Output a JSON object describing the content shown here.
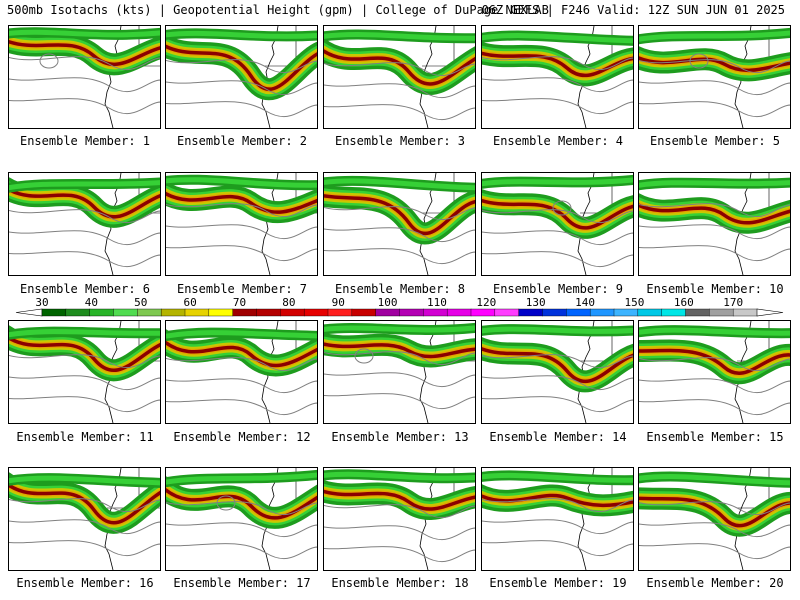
{
  "title": {
    "left": "500mb Isotachs (kts) | Geopotential Height (gpm) | College of DuPage NEXLAB",
    "right": "06Z GEFS | F246 Valid: 12Z SUN JUN 01 2025"
  },
  "panels": [
    {
      "label": "Ensemble Member: 1"
    },
    {
      "label": "Ensemble Member: 2"
    },
    {
      "label": "Ensemble Member: 3"
    },
    {
      "label": "Ensemble Member: 4"
    },
    {
      "label": "Ensemble Member: 5"
    },
    {
      "label": "Ensemble Member: 6"
    },
    {
      "label": "Ensemble Member: 7"
    },
    {
      "label": "Ensemble Member: 8"
    },
    {
      "label": "Ensemble Member: 9"
    },
    {
      "label": "Ensemble Member: 10"
    },
    {
      "label": "Ensemble Member: 11"
    },
    {
      "label": "Ensemble Member: 12"
    },
    {
      "label": "Ensemble Member: 13"
    },
    {
      "label": "Ensemble Member: 14"
    },
    {
      "label": "Ensemble Member: 15"
    },
    {
      "label": "Ensemble Member: 16"
    },
    {
      "label": "Ensemble Member: 17"
    },
    {
      "label": "Ensemble Member: 18"
    },
    {
      "label": "Ensemble Member: 19"
    },
    {
      "label": "Ensemble Member: 20"
    }
  ],
  "colorbar": {
    "ticks": [
      "30",
      "40",
      "50",
      "60",
      "70",
      "80",
      "90",
      "100",
      "110",
      "120",
      "130",
      "140",
      "150",
      "160",
      "170"
    ],
    "colors": [
      "#006400",
      "#1e8c1e",
      "#28b428",
      "#50dc50",
      "#7ec850",
      "#b4b400",
      "#e6d200",
      "#ffff00",
      "#a00000",
      "#b40000",
      "#d20000",
      "#e60000",
      "#ff1e1e",
      "#c80000",
      "#a000a0",
      "#b400b4",
      "#d200d2",
      "#e600e6",
      "#ff00ff",
      "#ff3cff",
      "#0000c8",
      "#0032dc",
      "#0064ff",
      "#1e96ff",
      "#3cb4ff",
      "#00c8e6",
      "#00e6e6",
      "#646464",
      "#a0a0a0",
      "#c8c8c8"
    ]
  }
}
